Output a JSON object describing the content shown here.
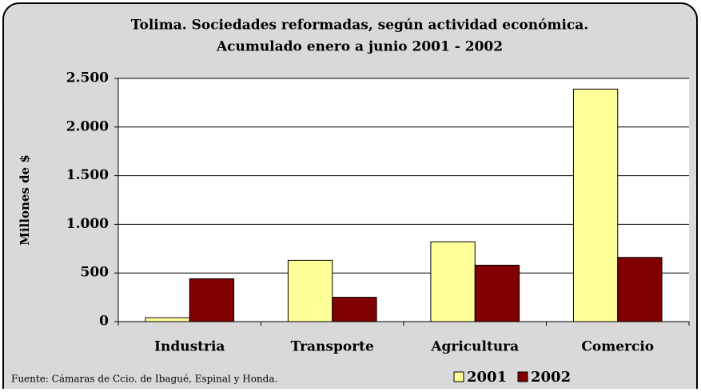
{
  "chart_data": {
    "type": "bar",
    "title": "Tolima. Sociedades reformadas, según actividad económica.",
    "subtitle": "Acumulado enero a junio 2001 - 2002",
    "y_label": "Millones de $",
    "source": "Fuente: Cámaras de Ccio. de Ibagué, Espinal y Honda.",
    "categories": [
      "Industria",
      "Transporte",
      "Agricultura",
      "Comercio"
    ],
    "series": [
      {
        "name": "2001",
        "color": "#ffff99",
        "values": [
          40,
          630,
          820,
          2390
        ]
      },
      {
        "name": "2002",
        "color": "#800000",
        "values": [
          440,
          250,
          580,
          660
        ]
      }
    ],
    "ylim": [
      0,
      2500
    ],
    "yticks": [
      0,
      500,
      {
        "value": 1000,
        "label": "1.000"
      },
      {
        "value": 1500,
        "label": "1.500"
      },
      {
        "value": 2000,
        "label": "2.000"
      },
      {
        "value": 2500,
        "label": "2.500"
      }
    ],
    "grid": true,
    "legend": "bottom"
  }
}
